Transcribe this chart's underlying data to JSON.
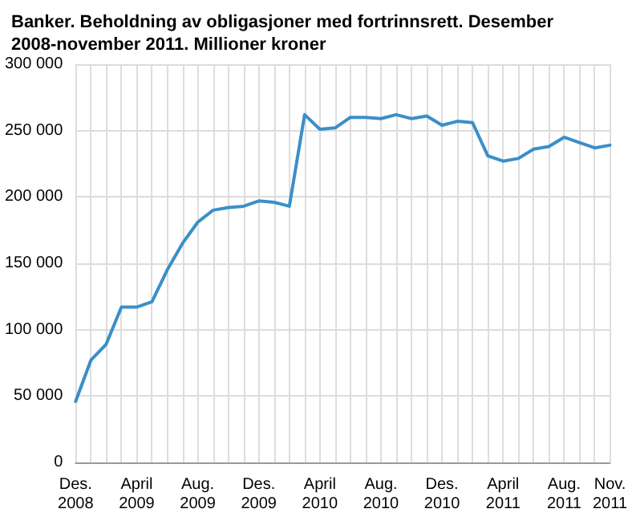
{
  "chart_data": {
    "type": "line",
    "title": "Banker. Beholdning av obligasjoner med fortrinnsrett. Desember 2008-november 2011. Millioner kroner",
    "categories": [
      "Des. 2008",
      null,
      null,
      null,
      "April 2009",
      null,
      null,
      null,
      "Aug. 2009",
      null,
      null,
      null,
      "Des. 2009",
      null,
      null,
      null,
      "April 2010",
      null,
      null,
      null,
      "Aug. 2010",
      null,
      null,
      null,
      "Des. 2010",
      null,
      null,
      null,
      "April 2011",
      null,
      null,
      null,
      "Aug. 2011",
      null,
      null,
      "Nov. 2011"
    ],
    "series": [
      {
        "color": "#3a8fc8",
        "values": [
          46000,
          77000,
          89000,
          117000,
          117000,
          121000,
          145000,
          165000,
          181000,
          190000,
          192000,
          193000,
          197000,
          196000,
          193000,
          262000,
          251000,
          252000,
          260000,
          260000,
          259000,
          262000,
          259000,
          261000,
          254000,
          257000,
          256000,
          231000,
          227000,
          229000,
          236000,
          238000,
          245000,
          241000,
          237000,
          239000
        ]
      }
    ],
    "ylim": [
      0,
      300000
    ],
    "yticks": [
      {
        "value": 0,
        "label": "0"
      },
      {
        "value": 50000,
        "label": "50 000"
      },
      {
        "value": 100000,
        "label": "100 000"
      },
      {
        "value": 150000,
        "label": "150 000"
      },
      {
        "value": 200000,
        "label": "200 000"
      },
      {
        "value": 250000,
        "label": "250 000"
      },
      {
        "value": 300000,
        "label": "300 000"
      }
    ],
    "grid": true,
    "marker": "none",
    "line_style": "solid"
  }
}
